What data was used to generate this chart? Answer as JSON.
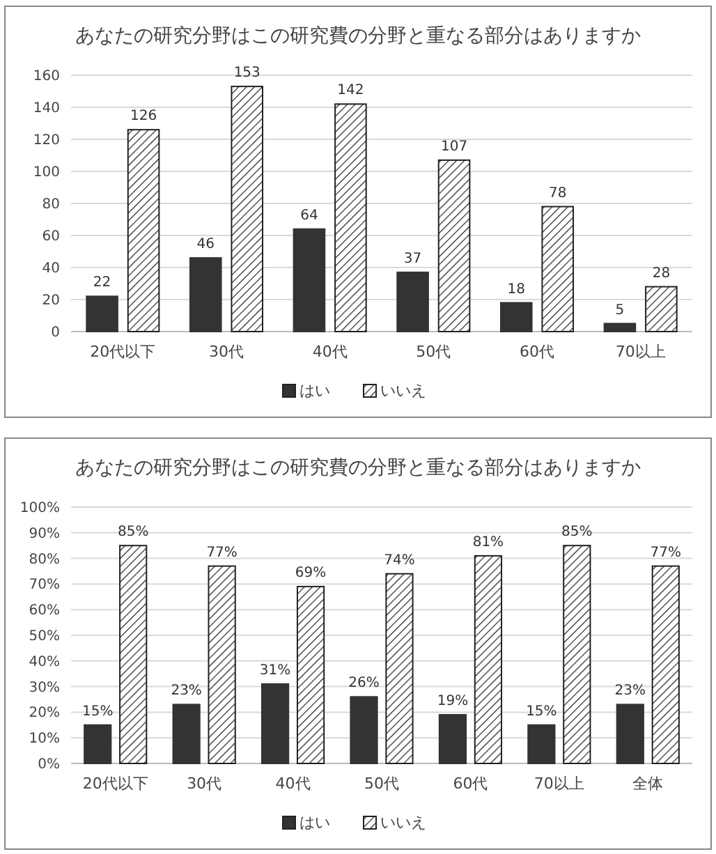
{
  "chart_data": [
    {
      "type": "bar",
      "title": "あなたの研究分野はこの研究費の分野と重なる部分はありますか",
      "categories": [
        "20代以下",
        "30代",
        "40代",
        "50代",
        "60代",
        "70以上"
      ],
      "series": [
        {
          "name": "はい",
          "color": "#333333",
          "values": [
            22,
            46,
            64,
            37,
            18,
            5
          ]
        },
        {
          "name": "いいえ",
          "color": "#222222",
          "values": [
            126,
            153,
            142,
            107,
            78,
            28
          ]
        }
      ],
      "ylim": [
        0,
        160
      ],
      "yticks": [
        0,
        20,
        40,
        60,
        80,
        100,
        120,
        140,
        160
      ],
      "grid": "y",
      "legend": "bottom",
      "data_labels": true
    },
    {
      "type": "bar",
      "title": "あなたの研究分野はこの研究費の分野と重なる部分はありますか",
      "categories": [
        "20代以下",
        "30代",
        "40代",
        "50代",
        "60代",
        "70以上",
        "全体"
      ],
      "series": [
        {
          "name": "はい",
          "color": "#333333",
          "values": [
            15,
            23,
            31,
            26,
            19,
            15,
            23
          ],
          "value_labels": [
            "15%",
            "23%",
            "31%",
            "26%",
            "19%",
            "15%",
            "23%"
          ]
        },
        {
          "name": "いいえ",
          "color": "#222222",
          "values": [
            85,
            77,
            69,
            74,
            81,
            85,
            77
          ],
          "value_labels": [
            "85%",
            "77%",
            "69%",
            "74%",
            "81%",
            "85%",
            "77%"
          ]
        }
      ],
      "ylim": [
        0,
        100
      ],
      "yticks": [
        {
          "value": 0,
          "label": "0%"
        },
        {
          "value": 10,
          "label": "10%"
        },
        {
          "value": 20,
          "label": "20%"
        },
        {
          "value": 30,
          "label": "30%"
        },
        {
          "value": 40,
          "label": "40%"
        },
        {
          "value": 50,
          "label": "50%"
        },
        {
          "value": 60,
          "label": "60%"
        },
        {
          "value": 70,
          "label": "70%"
        },
        {
          "value": 80,
          "label": "80%"
        },
        {
          "value": 90,
          "label": "90%"
        },
        {
          "value": 100,
          "label": "100%"
        }
      ],
      "grid": "y",
      "legend": "bottom"
    }
  ]
}
